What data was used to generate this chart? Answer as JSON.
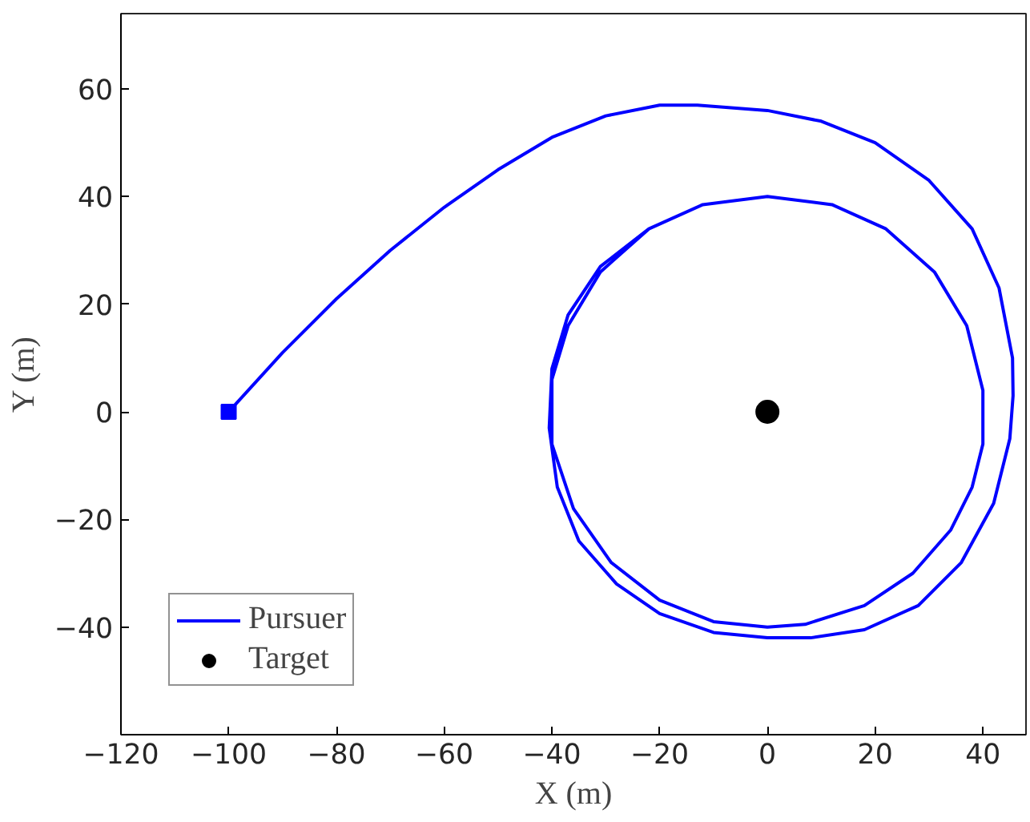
{
  "chart_data": {
    "type": "line",
    "xlabel": "X (m)",
    "ylabel": "Y (m)",
    "xlim": [
      -120,
      48
    ],
    "ylim": [
      -60,
      74
    ],
    "xticks": [
      -120,
      -100,
      -80,
      -60,
      -40,
      -20,
      0,
      20,
      40
    ],
    "yticks": [
      -40,
      -20,
      0,
      20,
      40,
      60
    ],
    "grid": false,
    "legend": "bottom left",
    "series": [
      {
        "name": "Pursuer",
        "color": "#0000ff",
        "marker": "none",
        "line_style": "solid",
        "x": [
          -100,
          -90,
          -80,
          -70,
          -60,
          -50,
          -40,
          -30,
          -20,
          -13,
          0,
          10,
          20,
          30,
          38,
          43,
          45.5,
          45.6,
          45,
          42,
          36,
          28,
          18,
          8,
          0,
          -10,
          -20,
          -28,
          -35,
          -39,
          -40.5,
          -40,
          -37,
          -31,
          -22,
          -12,
          0,
          12,
          22,
          31,
          37,
          40,
          40,
          38,
          34,
          27,
          18,
          7,
          0,
          -10,
          -20,
          -29,
          -36,
          -40,
          -40,
          -37,
          -31,
          -22,
          -12,
          0,
          12,
          22,
          31,
          37,
          40,
          40
        ],
        "values": [
          0,
          11,
          21,
          30,
          38,
          45,
          51,
          55,
          57,
          57,
          56,
          54,
          50,
          43,
          34,
          23,
          10,
          3,
          -5,
          -17,
          -28,
          -36,
          -40.5,
          -42,
          -42,
          -41,
          -37.5,
          -32,
          -24,
          -14,
          -3,
          8,
          18,
          27,
          34,
          38.5,
          40,
          38.5,
          34,
          26,
          16,
          4,
          -6,
          -14,
          -22,
          -30,
          -36,
          -39.5,
          -40,
          -39,
          -35,
          -28,
          -18,
          -6,
          6,
          16,
          26,
          34,
          38.5,
          40,
          38.5,
          34,
          26,
          16,
          4,
          0
        ]
      },
      {
        "type": "scatter",
        "color": "#0000ff",
        "marker": "square",
        "x": [
          -100
        ],
        "values": [
          0
        ]
      },
      {
        "name": "Target",
        "type": "scatter",
        "color": "#000000",
        "marker": "circle",
        "x": [
          0
        ],
        "values": [
          0
        ]
      }
    ]
  }
}
